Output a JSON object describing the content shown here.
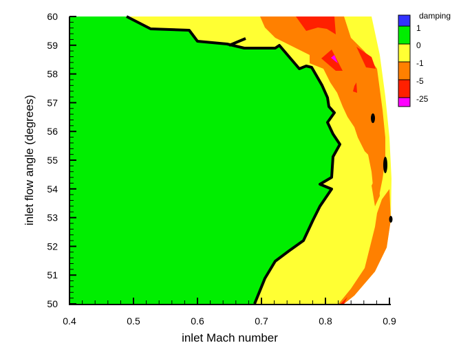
{
  "chart_data": {
    "type": "heatmap",
    "subtype": "filled-contour",
    "title": "",
    "xlabel": "inlet Mach number",
    "ylabel": "inlet flow angle (degrees)",
    "xlim": [
      0.4,
      0.9
    ],
    "ylim": [
      50,
      60
    ],
    "x_ticks": [
      "0.4",
      "0.5",
      "0.6",
      "0.7",
      "0.8",
      "0.9"
    ],
    "y_ticks": [
      "50",
      "51",
      "52",
      "53",
      "54",
      "55",
      "56",
      "57",
      "58",
      "59",
      "60"
    ],
    "grid": false,
    "legend": {
      "title": "damping",
      "position": "right",
      "levels": [
        {
          "label": "1",
          "color": "#3232ff",
          "range": "> 1"
        },
        {
          "label": "0",
          "color": "#00ee00",
          "range": "0 to 1"
        },
        {
          "label": "-1",
          "color": "#ffff33",
          "range": "-1 to 0"
        },
        {
          "label": "-5",
          "color": "#ff8000",
          "range": "-5 to -1"
        },
        {
          "label": "-25",
          "color": "#ff2000",
          "range": "-25 to -5"
        },
        {
          "label": "",
          "color": "#ff00ff",
          "range": "< -25"
        }
      ]
    },
    "zero_contour_boundary": [
      [
        0.49,
        60.0
      ],
      [
        0.53,
        59.6
      ],
      [
        0.58,
        59.55
      ],
      [
        0.605,
        59.15
      ],
      [
        0.65,
        59.05
      ],
      [
        0.67,
        58.85
      ],
      [
        0.71,
        58.85
      ],
      [
        0.72,
        58.9
      ],
      [
        0.76,
        58.4
      ],
      [
        0.775,
        58.3
      ],
      [
        0.785,
        57.9
      ],
      [
        0.79,
        57.5
      ],
      [
        0.8,
        57.2
      ],
      [
        0.805,
        56.9
      ],
      [
        0.81,
        56.7
      ],
      [
        0.8,
        56.4
      ],
      [
        0.81,
        56.0
      ],
      [
        0.82,
        55.6
      ],
      [
        0.81,
        55.2
      ],
      [
        0.805,
        54.5
      ],
      [
        0.795,
        54.2
      ],
      [
        0.81,
        53.9
      ],
      [
        0.795,
        53.6
      ],
      [
        0.78,
        53.3
      ],
      [
        0.77,
        52.7
      ],
      [
        0.76,
        52.2
      ],
      [
        0.74,
        51.7
      ],
      [
        0.725,
        51.4
      ],
      [
        0.71,
        50.9
      ],
      [
        0.69,
        50.0
      ]
    ],
    "notes": "Green stable region (damping 0..1) occupies left portion; yellow band (-1..0), orange (-5..-1), red (-25..-5) and small magenta spot (< -25) near Mach 0.81, 58.5 deg. Plotted region bounded on right near Mach 0.87-0.9."
  }
}
